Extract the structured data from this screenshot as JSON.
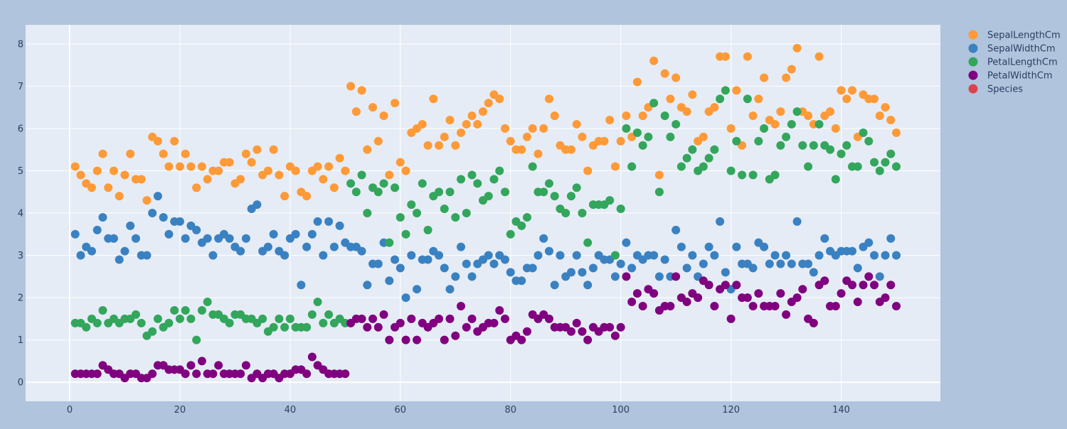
{
  "colors": {
    "paper": "#b0c4de",
    "plot": "#e5ecf6",
    "grid": "#ffffff",
    "text": "#2a3f5f"
  },
  "chart_data": {
    "type": "scatter",
    "xlim": [
      -8,
      158
    ],
    "ylim": [
      -0.45,
      8.45
    ],
    "xticks": [
      0,
      20,
      40,
      60,
      80,
      100,
      120,
      140
    ],
    "yticks": [
      0,
      1,
      2,
      3,
      4,
      5,
      6,
      7,
      8
    ],
    "grid": true,
    "legend_position": "right",
    "x": [
      1,
      2,
      3,
      4,
      5,
      6,
      7,
      8,
      9,
      10,
      11,
      12,
      13,
      14,
      15,
      16,
      17,
      18,
      19,
      20,
      21,
      22,
      23,
      24,
      25,
      26,
      27,
      28,
      29,
      30,
      31,
      32,
      33,
      34,
      35,
      36,
      37,
      38,
      39,
      40,
      41,
      42,
      43,
      44,
      45,
      46,
      47,
      48,
      49,
      50,
      51,
      52,
      53,
      54,
      55,
      56,
      57,
      58,
      59,
      60,
      61,
      62,
      63,
      64,
      65,
      66,
      67,
      68,
      69,
      70,
      71,
      72,
      73,
      74,
      75,
      76,
      77,
      78,
      79,
      80,
      81,
      82,
      83,
      84,
      85,
      86,
      87,
      88,
      89,
      90,
      91,
      92,
      93,
      94,
      95,
      96,
      97,
      98,
      99,
      100,
      101,
      102,
      103,
      104,
      105,
      106,
      107,
      108,
      109,
      110,
      111,
      112,
      113,
      114,
      115,
      116,
      117,
      118,
      119,
      120,
      121,
      122,
      123,
      124,
      125,
      126,
      127,
      128,
      129,
      130,
      131,
      132,
      133,
      134,
      135,
      136,
      137,
      138,
      139,
      140,
      141,
      142,
      143,
      144,
      145,
      146,
      147,
      148,
      149,
      150
    ],
    "series": [
      {
        "name": "SepalLengthCm",
        "color": "#fe9a37",
        "values": [
          5.1,
          4.9,
          4.7,
          4.6,
          5.0,
          5.4,
          4.6,
          5.0,
          4.4,
          4.9,
          5.4,
          4.8,
          4.8,
          4.3,
          5.8,
          5.7,
          5.4,
          5.1,
          5.7,
          5.1,
          5.4,
          5.1,
          4.6,
          5.1,
          4.8,
          5.0,
          5.0,
          5.2,
          5.2,
          4.7,
          4.8,
          5.4,
          5.2,
          5.5,
          4.9,
          5.0,
          5.5,
          4.9,
          4.4,
          5.1,
          5.0,
          4.5,
          4.4,
          5.0,
          5.1,
          4.8,
          5.1,
          4.6,
          5.3,
          5.0,
          7.0,
          6.4,
          6.9,
          5.5,
          6.5,
          5.7,
          6.3,
          4.9,
          6.6,
          5.2,
          5.0,
          5.9,
          6.0,
          6.1,
          5.6,
          6.7,
          5.6,
          5.8,
          6.2,
          5.6,
          5.9,
          6.1,
          6.3,
          6.1,
          6.4,
          6.6,
          6.8,
          6.7,
          6.0,
          5.7,
          5.5,
          5.5,
          5.8,
          6.0,
          5.4,
          6.0,
          6.7,
          6.3,
          5.6,
          5.5,
          5.5,
          6.1,
          5.8,
          5.0,
          5.6,
          5.7,
          5.7,
          6.2,
          5.1,
          5.7,
          6.3,
          5.8,
          7.1,
          6.3,
          6.5,
          7.6,
          4.9,
          7.3,
          6.7,
          7.2,
          6.5,
          6.4,
          6.8,
          5.7,
          5.8,
          6.4,
          6.5,
          7.7,
          7.7,
          6.0,
          6.9,
          5.6,
          7.7,
          6.3,
          6.7,
          7.2,
          6.2,
          6.1,
          6.4,
          7.2,
          7.4,
          7.9,
          6.4,
          6.3,
          6.1,
          7.7,
          6.3,
          6.4,
          6.0,
          6.9,
          6.7,
          6.9,
          5.8,
          6.8,
          6.7,
          6.7,
          6.3,
          6.5,
          6.2,
          5.9
        ]
      },
      {
        "name": "SepalWidthCm",
        "color": "#3a81c1",
        "values": [
          3.5,
          3.0,
          3.2,
          3.1,
          3.6,
          3.9,
          3.4,
          3.4,
          2.9,
          3.1,
          3.7,
          3.4,
          3.0,
          3.0,
          4.0,
          4.4,
          3.9,
          3.5,
          3.8,
          3.8,
          3.4,
          3.7,
          3.6,
          3.3,
          3.4,
          3.0,
          3.4,
          3.5,
          3.4,
          3.2,
          3.1,
          3.4,
          4.1,
          4.2,
          3.1,
          3.2,
          3.5,
          3.1,
          3.0,
          3.4,
          3.5,
          2.3,
          3.2,
          3.5,
          3.8,
          3.0,
          3.8,
          3.2,
          3.7,
          3.3,
          3.2,
          3.2,
          3.1,
          2.3,
          2.8,
          2.8,
          3.3,
          2.4,
          2.9,
          2.7,
          2.0,
          3.0,
          2.2,
          2.9,
          2.9,
          3.1,
          3.0,
          2.7,
          2.2,
          2.5,
          3.2,
          2.8,
          2.5,
          2.8,
          2.9,
          3.0,
          2.8,
          3.0,
          2.9,
          2.6,
          2.4,
          2.4,
          2.7,
          2.7,
          3.0,
          3.4,
          3.1,
          2.3,
          3.0,
          2.5,
          2.6,
          3.0,
          2.6,
          2.3,
          2.7,
          3.0,
          2.9,
          2.9,
          2.5,
          2.8,
          3.3,
          2.7,
          3.0,
          2.9,
          3.0,
          3.0,
          2.5,
          2.9,
          2.5,
          3.6,
          3.2,
          2.7,
          3.0,
          2.5,
          2.8,
          3.2,
          3.0,
          3.8,
          2.6,
          2.2,
          3.2,
          2.8,
          2.8,
          2.7,
          3.3,
          3.2,
          2.8,
          3.0,
          2.8,
          3.0,
          2.8,
          3.8,
          2.8,
          2.8,
          2.6,
          3.0,
          3.4,
          3.1,
          3.0,
          3.1,
          3.1,
          3.1,
          2.7,
          3.2,
          3.3,
          3.0,
          2.5,
          3.0,
          3.4,
          3.0
        ]
      },
      {
        "name": "PetalLengthCm",
        "color": "#33a65c",
        "values": [
          1.4,
          1.4,
          1.3,
          1.5,
          1.4,
          1.7,
          1.4,
          1.5,
          1.4,
          1.5,
          1.5,
          1.6,
          1.4,
          1.1,
          1.2,
          1.5,
          1.3,
          1.4,
          1.7,
          1.5,
          1.7,
          1.5,
          1.0,
          1.7,
          1.9,
          1.6,
          1.6,
          1.5,
          1.4,
          1.6,
          1.6,
          1.5,
          1.5,
          1.4,
          1.5,
          1.2,
          1.3,
          1.5,
          1.3,
          1.5,
          1.3,
          1.3,
          1.3,
          1.6,
          1.9,
          1.4,
          1.6,
          1.4,
          1.5,
          1.4,
          4.7,
          4.5,
          4.9,
          4.0,
          4.6,
          4.5,
          4.7,
          3.3,
          4.6,
          3.9,
          3.5,
          4.2,
          4.0,
          4.7,
          3.6,
          4.4,
          4.5,
          4.1,
          4.5,
          3.9,
          4.8,
          4.0,
          4.9,
          4.7,
          4.3,
          4.4,
          4.8,
          5.0,
          4.5,
          3.5,
          3.8,
          3.7,
          3.9,
          5.1,
          4.5,
          4.5,
          4.7,
          4.4,
          4.1,
          4.0,
          4.4,
          4.6,
          4.0,
          3.3,
          4.2,
          4.2,
          4.2,
          4.3,
          3.0,
          4.1,
          6.0,
          5.1,
          5.9,
          5.6,
          5.8,
          6.6,
          4.5,
          6.3,
          5.8,
          6.1,
          5.1,
          5.3,
          5.5,
          5.0,
          5.1,
          5.3,
          5.5,
          6.7,
          6.9,
          5.0,
          5.7,
          4.9,
          6.7,
          4.9,
          5.7,
          6.0,
          4.8,
          4.9,
          5.6,
          5.8,
          6.1,
          6.4,
          5.6,
          5.1,
          5.6,
          6.1,
          5.6,
          5.5,
          4.8,
          5.4,
          5.6,
          5.1,
          5.1,
          5.9,
          5.7,
          5.2,
          5.0,
          5.2,
          5.4,
          5.1
        ]
      },
      {
        "name": "PetalWidthCm",
        "color": "#800080",
        "values": [
          0.2,
          0.2,
          0.2,
          0.2,
          0.2,
          0.4,
          0.3,
          0.2,
          0.2,
          0.1,
          0.2,
          0.2,
          0.1,
          0.1,
          0.2,
          0.4,
          0.4,
          0.3,
          0.3,
          0.3,
          0.2,
          0.4,
          0.2,
          0.5,
          0.2,
          0.2,
          0.4,
          0.2,
          0.2,
          0.2,
          0.2,
          0.4,
          0.1,
          0.2,
          0.1,
          0.2,
          0.2,
          0.1,
          0.2,
          0.2,
          0.3,
          0.3,
          0.2,
          0.6,
          0.4,
          0.3,
          0.2,
          0.2,
          0.2,
          0.2,
          1.4,
          1.5,
          1.5,
          1.3,
          1.5,
          1.3,
          1.6,
          1.0,
          1.3,
          1.4,
          1.0,
          1.5,
          1.0,
          1.4,
          1.3,
          1.4,
          1.5,
          1.0,
          1.5,
          1.1,
          1.8,
          1.3,
          1.5,
          1.2,
          1.3,
          1.4,
          1.4,
          1.7,
          1.5,
          1.0,
          1.1,
          1.0,
          1.2,
          1.6,
          1.5,
          1.6,
          1.5,
          1.3,
          1.3,
          1.3,
          1.2,
          1.4,
          1.2,
          1.0,
          1.3,
          1.2,
          1.3,
          1.3,
          1.1,
          1.3,
          2.5,
          1.9,
          2.1,
          1.8,
          2.2,
          2.1,
          1.7,
          1.8,
          1.8,
          2.5,
          2.0,
          1.9,
          2.1,
          2.0,
          2.4,
          2.3,
          1.8,
          2.2,
          2.3,
          1.5,
          2.3,
          2.0,
          2.0,
          1.8,
          2.1,
          1.8,
          1.8,
          1.8,
          2.1,
          1.6,
          1.9,
          2.0,
          2.2,
          1.5,
          1.4,
          2.3,
          2.4,
          1.8,
          1.8,
          2.1,
          2.4,
          2.3,
          1.9,
          2.3,
          2.5,
          2.3,
          1.9,
          2.0,
          2.3,
          1.8
        ]
      },
      {
        "name": "Species",
        "color": "#d9434b",
        "values": []
      }
    ]
  }
}
